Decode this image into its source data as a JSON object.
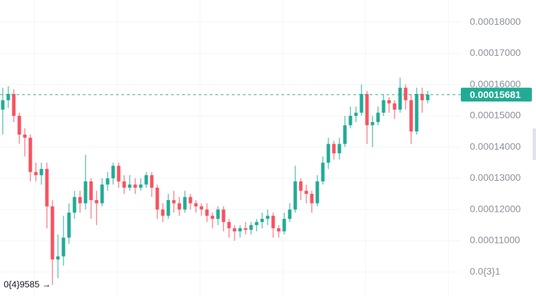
{
  "chart_data": {
    "type": "candlestick",
    "ylim": [
      9.23e-05,
      0.0001871
    ],
    "yticks": [
      {
        "value": 0.00018,
        "label": "0.00018000"
      },
      {
        "value": 0.00017,
        "label": "0.00017000"
      },
      {
        "value": 0.00016,
        "label": "0.00016000"
      },
      {
        "value": 0.00015,
        "label": "0.00015000"
      },
      {
        "value": 0.00014,
        "label": "0.00014000"
      },
      {
        "value": 0.00013,
        "label": "0.00013000"
      },
      {
        "value": 0.00012,
        "label": "0.00012000"
      },
      {
        "value": 0.00011,
        "label": "0.00011000"
      },
      {
        "value": 0.0001,
        "label": "0.0{3}1"
      }
    ],
    "grid": true,
    "up_color": "#22ab94",
    "down_color": "#f7525f",
    "last_price": {
      "value": 0.00015681,
      "label": "0.00015681"
    },
    "low_annotation": {
      "value": 9.585e-05,
      "label": "0{4}9585 →",
      "index": 9
    },
    "open": [
      0.000152,
      0.000155,
      0.000157,
      0.00015,
      0.000144,
      0.000143,
      0.000132,
      0.000131,
      0.000133,
      0.000121,
      0.000104,
      0.000105,
      0.000111,
      0.000119,
      0.000124,
      0.000122,
      0.000129,
      0.000123,
      0.000122,
      0.000128,
      0.00013,
      0.000134,
      0.000129,
      0.000127,
      0.000128,
      0.000127,
      0.000128,
      0.000131,
      0.000127,
      0.00012,
      0.000118,
      0.000123,
      0.000122,
      0.00012,
      0.000124,
      0.000122,
      0.000121,
      0.00012,
      0.000118,
      0.000117,
      0.00012,
      0.000116,
      0.000114,
      0.000113,
      0.000114,
      0.0001135,
      0.000115,
      0.000116,
      0.000117,
      0.000118,
      0.000114,
      0.000113,
      0.000117,
      0.00012,
      0.000129,
      0.000126,
      0.000125,
      0.000122,
      0.000129,
      0.000135,
      0.000141,
      0.000138,
      0.000141,
      0.000147,
      0.00015,
      0.000151,
      0.000157,
      0.000147,
      0.000148,
      0.000151,
      0.000155,
      0.000154,
      0.000152,
      0.000159,
      0.000155,
      0.000145,
      0.000157,
      0.000155
    ],
    "high": [
      0.000159,
      0.0001595,
      0.0001585,
      0.000151,
      0.000146,
      0.000144,
      0.000135,
      0.000135,
      0.000135,
      0.000123,
      0.000112,
      0.000118,
      0.000122,
      0.000126,
      0.000126,
      0.0001375,
      0.00013,
      0.000126,
      0.00013,
      0.000132,
      0.000135,
      0.000135,
      0.000131,
      0.000131,
      0.00013,
      0.00013,
      0.000132,
      0.000132,
      0.000128,
      0.000122,
      0.000125,
      0.000126,
      0.000124,
      0.000126,
      0.000125,
      0.000123,
      0.000122,
      0.000122,
      0.000119,
      0.000121,
      0.000121,
      0.000117,
      0.000115,
      0.000115,
      0.000116,
      0.000116,
      0.000117,
      0.000119,
      0.00012,
      0.000119,
      0.000115,
      0.000119,
      0.000122,
      0.000134,
      0.00013,
      0.000128,
      0.000126,
      0.000131,
      0.000137,
      0.000143,
      0.000142,
      0.000143,
      0.00015,
      0.000153,
      0.000153,
      0.00016,
      0.000158,
      0.00015,
      0.000153,
      0.000157,
      0.000156,
      0.000155,
      0.0001622,
      0.00016,
      0.000157,
      0.000159,
      0.000159,
      0.000158
    ],
    "low": [
      0.000144,
      0.0001525,
      0.000148,
      0.000141,
      0.000137,
      0.000129,
      0.000129,
      0.000128,
      0.000114,
      9.585e-05,
      9.8e-05,
      0.000102,
      0.000109,
      0.000117,
      0.000119,
      0.00012,
      0.000117,
      0.000115,
      0.000121,
      0.000126,
      0.000128,
      0.000127,
      0.000125,
      0.000126,
      0.000125,
      0.000126,
      0.000127,
      0.000124,
      0.000117,
      0.000116,
      0.000117,
      0.000119,
      0.000118,
      0.000119,
      0.00012,
      0.000119,
      0.000118,
      0.000116,
      0.000114,
      0.000115,
      0.000113,
      0.000111,
      0.00011,
      0.000111,
      0.000112,
      0.000112,
      0.000113,
      0.000114,
      0.000115,
      0.000111,
      0.000111,
      0.000112,
      0.000116,
      0.000119,
      0.000123,
      0.000122,
      0.000119,
      0.000121,
      0.000128,
      0.000133,
      0.000136,
      0.000136,
      0.00014,
      0.000146,
      0.000148,
      0.00015,
      0.000141,
      0.00014,
      0.000147,
      0.00015,
      0.000151,
      0.000149,
      0.000151,
      0.000152,
      0.000141,
      0.000144,
      0.000151,
      0.000154
    ],
    "close": [
      0.000155,
      0.000157,
      0.00015,
      0.000144,
      0.000143,
      0.000132,
      0.000131,
      0.000133,
      0.000121,
      0.000104,
      0.000105,
      0.000111,
      0.000119,
      0.000124,
      0.000122,
      0.000129,
      0.000123,
      0.000122,
      0.000128,
      0.00013,
      0.000134,
      0.000129,
      0.000127,
      0.000128,
      0.000127,
      0.000128,
      0.000131,
      0.000127,
      0.00012,
      0.000118,
      0.000123,
      0.000122,
      0.00012,
      0.000124,
      0.000122,
      0.000121,
      0.00012,
      0.000118,
      0.000117,
      0.00012,
      0.000116,
      0.000114,
      0.000113,
      0.000114,
      0.0001135,
      0.000115,
      0.000116,
      0.000117,
      0.000118,
      0.000114,
      0.000113,
      0.000117,
      0.00012,
      0.000129,
      0.000126,
      0.000125,
      0.000122,
      0.000129,
      0.000135,
      0.000141,
      0.000138,
      0.000141,
      0.000147,
      0.00015,
      0.000151,
      0.000157,
      0.000147,
      0.000148,
      0.000151,
      0.000155,
      0.000154,
      0.000152,
      0.000159,
      0.000155,
      0.000145,
      0.000157,
      0.000155,
      0.0001568
    ]
  }
}
